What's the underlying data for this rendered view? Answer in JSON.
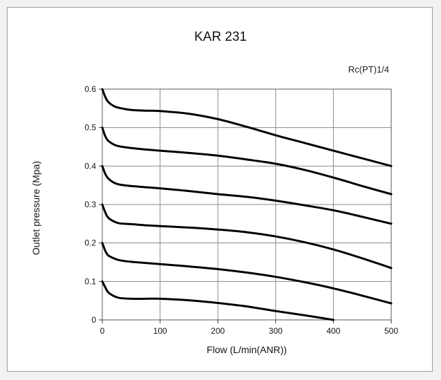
{
  "chart_data": {
    "type": "line",
    "title": "KAR 231",
    "annotation": "Rc(PT)1/4",
    "xlabel": "Flow (L/min(ANR))",
    "ylabel": "Outlet pressure (Mpa)",
    "xlim": [
      0,
      500
    ],
    "ylim": [
      0,
      0.6
    ],
    "xticks": [
      0,
      100,
      200,
      300,
      400,
      500
    ],
    "xtick_labels": [
      "0",
      "100",
      "200",
      "300",
      "400",
      "500"
    ],
    "yticks": [
      0,
      0.1,
      0.2,
      0.3,
      0.4,
      0.5,
      0.6
    ],
    "ytick_labels": [
      "0",
      "0.1",
      "0.2",
      "0.3",
      "0.4",
      "0.5",
      "0.6"
    ],
    "grid": true,
    "series": [
      {
        "x": [
          0,
          5,
          10,
          20,
          30,
          50,
          75,
          100,
          150,
          200,
          250,
          300,
          350,
          400,
          450,
          500
        ],
        "y": [
          0.6,
          0.58,
          0.567,
          0.556,
          0.551,
          0.546,
          0.544,
          0.543,
          0.536,
          0.522,
          0.502,
          0.48,
          0.46,
          0.44,
          0.42,
          0.4
        ]
      },
      {
        "x": [
          0,
          5,
          10,
          20,
          30,
          50,
          75,
          100,
          150,
          200,
          250,
          300,
          350,
          400,
          450,
          500
        ],
        "y": [
          0.5,
          0.478,
          0.466,
          0.456,
          0.451,
          0.447,
          0.443,
          0.44,
          0.434,
          0.427,
          0.417,
          0.406,
          0.39,
          0.37,
          0.348,
          0.327
        ]
      },
      {
        "x": [
          0,
          5,
          10,
          20,
          30,
          50,
          75,
          100,
          150,
          200,
          250,
          300,
          350,
          400,
          450,
          500
        ],
        "y": [
          0.4,
          0.38,
          0.368,
          0.357,
          0.352,
          0.348,
          0.345,
          0.342,
          0.335,
          0.327,
          0.32,
          0.31,
          0.298,
          0.285,
          0.268,
          0.25
        ]
      },
      {
        "x": [
          0,
          5,
          10,
          20,
          30,
          50,
          75,
          100,
          150,
          200,
          250,
          300,
          350,
          400,
          450,
          500
        ],
        "y": [
          0.3,
          0.28,
          0.266,
          0.256,
          0.251,
          0.249,
          0.246,
          0.244,
          0.24,
          0.235,
          0.228,
          0.217,
          0.202,
          0.183,
          0.16,
          0.135
        ]
      },
      {
        "x": [
          0,
          5,
          10,
          20,
          30,
          50,
          75,
          100,
          150,
          200,
          250,
          300,
          350,
          400,
          450,
          500
        ],
        "y": [
          0.2,
          0.18,
          0.168,
          0.16,
          0.155,
          0.151,
          0.148,
          0.145,
          0.139,
          0.132,
          0.123,
          0.112,
          0.098,
          0.082,
          0.063,
          0.043
        ]
      },
      {
        "x": [
          0,
          5,
          10,
          20,
          30,
          50,
          75,
          100,
          150,
          200,
          250,
          300,
          350,
          400
        ],
        "y": [
          0.1,
          0.085,
          0.072,
          0.062,
          0.057,
          0.055,
          0.055,
          0.055,
          0.051,
          0.044,
          0.035,
          0.023,
          0.012,
          0.0
        ]
      }
    ]
  }
}
